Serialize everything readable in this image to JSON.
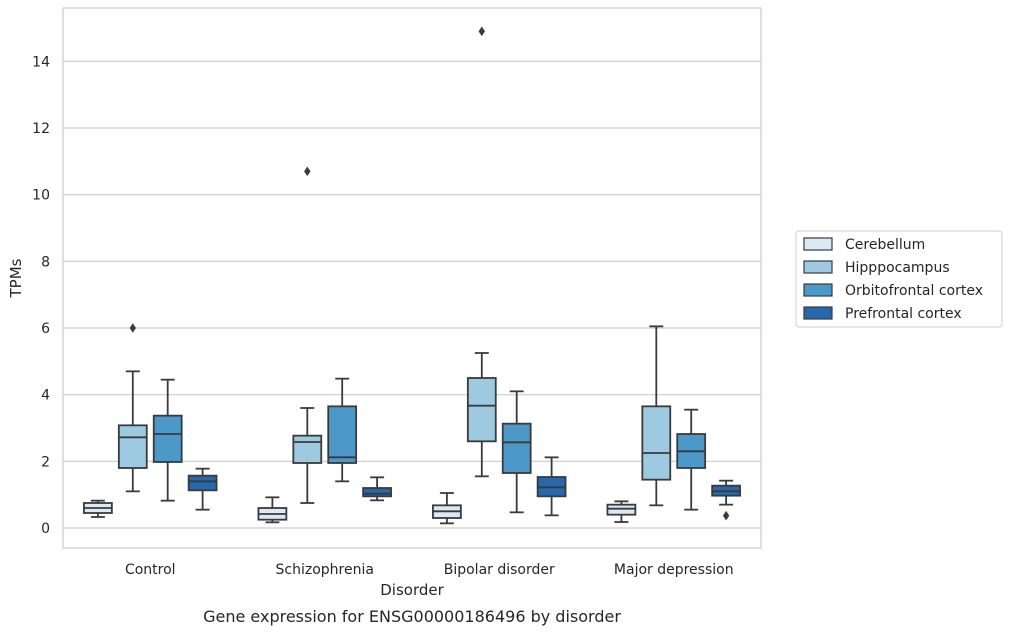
{
  "figure_title": "Gene expression for ENSG00000186496 by disorder",
  "chart_data": {
    "type": "box",
    "title": "",
    "xlabel": "Disorder",
    "ylabel": "TPMs",
    "ylim": [
      -0.6,
      15.6
    ],
    "yticks": [
      0,
      2,
      4,
      6,
      8,
      10,
      12,
      14
    ],
    "grid": "horizontal",
    "legend_position": "right",
    "categories": [
      "Control",
      "Schizophrenia",
      "Bipolar disorder",
      "Major depression"
    ],
    "series": [
      {
        "name": "Cerebellum",
        "color": "#dbe9f6",
        "boxes": [
          {
            "min": 0.33,
            "q1": 0.45,
            "median": 0.6,
            "q3": 0.75,
            "max": 0.82,
            "outliers": []
          },
          {
            "min": 0.17,
            "q1": 0.25,
            "median": 0.42,
            "q3": 0.6,
            "max": 0.92,
            "outliers": []
          },
          {
            "min": 0.14,
            "q1": 0.3,
            "median": 0.5,
            "q3": 0.68,
            "max": 1.05,
            "outliers": []
          },
          {
            "min": 0.18,
            "q1": 0.4,
            "median": 0.58,
            "q3": 0.7,
            "max": 0.8,
            "outliers": []
          }
        ]
      },
      {
        "name": "Hipppocampus",
        "color": "#9ecae1",
        "boxes": [
          {
            "min": 1.1,
            "q1": 1.8,
            "median": 2.72,
            "q3": 3.08,
            "max": 4.7,
            "outliers": [
              6.0
            ]
          },
          {
            "min": 0.75,
            "q1": 1.95,
            "median": 2.58,
            "q3": 2.77,
            "max": 3.6,
            "outliers": [
              10.7
            ]
          },
          {
            "min": 1.55,
            "q1": 2.6,
            "median": 3.67,
            "q3": 4.5,
            "max": 5.25,
            "outliers": [
              14.9
            ]
          },
          {
            "min": 0.68,
            "q1": 1.45,
            "median": 2.25,
            "q3": 3.65,
            "max": 6.05,
            "outliers": []
          }
        ]
      },
      {
        "name": "Orbitofrontal cortex",
        "color": "#4b98c9",
        "boxes": [
          {
            "min": 0.82,
            "q1": 1.98,
            "median": 2.82,
            "q3": 3.37,
            "max": 4.45,
            "outliers": []
          },
          {
            "min": 1.4,
            "q1": 1.95,
            "median": 2.12,
            "q3": 3.65,
            "max": 4.48,
            "outliers": []
          },
          {
            "min": 0.47,
            "q1": 1.65,
            "median": 2.57,
            "q3": 3.13,
            "max": 4.1,
            "outliers": []
          },
          {
            "min": 0.55,
            "q1": 1.8,
            "median": 2.3,
            "q3": 2.82,
            "max": 3.55,
            "outliers": []
          }
        ]
      },
      {
        "name": "Prefrontal cortex",
        "color": "#2867ab",
        "boxes": [
          {
            "min": 0.55,
            "q1": 1.13,
            "median": 1.4,
            "q3": 1.57,
            "max": 1.78,
            "outliers": []
          },
          {
            "min": 0.83,
            "q1": 0.95,
            "median": 1.03,
            "q3": 1.2,
            "max": 1.52,
            "outliers": []
          },
          {
            "min": 0.38,
            "q1": 0.95,
            "median": 1.22,
            "q3": 1.53,
            "max": 2.12,
            "outliers": []
          },
          {
            "min": 0.7,
            "q1": 0.97,
            "median": 1.1,
            "q3": 1.27,
            "max": 1.42,
            "outliers": [
              0.37
            ]
          }
        ]
      }
    ]
  }
}
